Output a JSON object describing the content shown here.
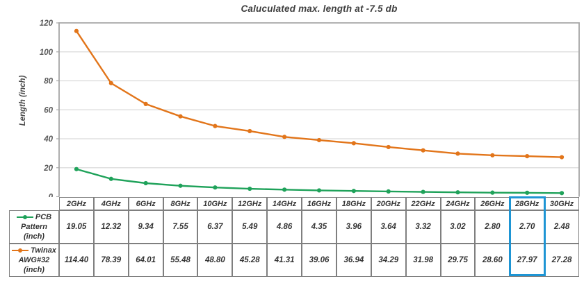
{
  "chart_data": {
    "type": "line",
    "title": "Caluculated max. length at -7.5 db",
    "xlabel": "",
    "ylabel": "Length (inch)",
    "ylim": [
      0,
      120
    ],
    "yticks": [
      0,
      20,
      40,
      60,
      80,
      100,
      120
    ],
    "grid": "horizontal",
    "legend_position": "table-left",
    "categories": [
      "2GHz",
      "4GHz",
      "6GHz",
      "8GHz",
      "10GHz",
      "12GHz",
      "14GHz",
      "16GHz",
      "18GHz",
      "20GHz",
      "22GHz",
      "24GHz",
      "26GHz",
      "28GHz",
      "30GHz"
    ],
    "series": [
      {
        "name": "PCB Pattern (inch)",
        "name_lines": [
          "PCB",
          "Pattern",
          "(inch)"
        ],
        "color": "#1fa25a",
        "values": [
          19.05,
          12.32,
          9.34,
          7.55,
          6.37,
          5.49,
          4.86,
          4.35,
          3.96,
          3.64,
          3.32,
          3.02,
          2.8,
          2.7,
          2.48
        ]
      },
      {
        "name": "Twinax AWG#32 (inch)",
        "name_lines": [
          "Twinax",
          "AWG#32",
          "(inch)"
        ],
        "color": "#e2751a",
        "values": [
          114.4,
          78.39,
          64.01,
          55.48,
          48.8,
          45.28,
          41.31,
          39.06,
          36.94,
          34.29,
          31.98,
          29.75,
          28.6,
          27.97,
          27.28
        ]
      }
    ],
    "highlight_column": "28GHz",
    "highlight_color": "#1e95d4"
  },
  "colors": {
    "gridline": "#d9d9d9",
    "plot_border": "#a6a6a6",
    "table_border": "#7f7f7f",
    "tick_text": "#595959",
    "title_text": "#3f3f3f"
  }
}
